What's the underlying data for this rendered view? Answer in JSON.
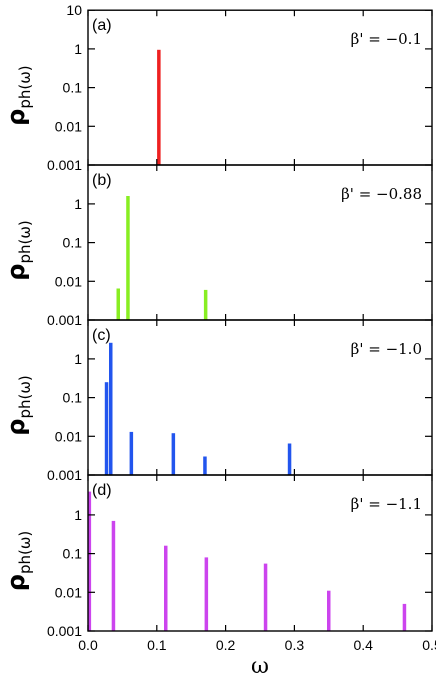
{
  "chart_data": [
    {
      "type": "bar",
      "panel_tag": "(a)",
      "annotation": "β' = −0.1",
      "ylabel": "ρ",
      "ylabel_sub": "ph(ω)",
      "yscale": "log",
      "ylim": [
        0.001,
        10
      ],
      "yticks": [
        "0.001",
        "0.01",
        "0.1",
        "1",
        "10"
      ],
      "xlim": [
        0,
        0.5
      ],
      "color": "#ee2020",
      "x": [
        0.103
      ],
      "values": [
        0.95
      ]
    },
    {
      "type": "bar",
      "panel_tag": "(b)",
      "annotation": "β' = −0.88",
      "ylabel": "ρ",
      "ylabel_sub": "ph(ω)",
      "yscale": "log",
      "ylim": [
        0.001,
        10
      ],
      "yticks": [
        "0.001",
        "0.01",
        "0.1",
        "1"
      ],
      "xlim": [
        0,
        0.5
      ],
      "color": "#88ee22",
      "x": [
        0.044,
        0.058,
        0.171
      ],
      "values": [
        0.0065,
        1.6,
        0.006
      ]
    },
    {
      "type": "bar",
      "panel_tag": "(c)",
      "annotation": "β' = −1.0",
      "ylabel": "ρ",
      "ylabel_sub": "ph(ω)",
      "yscale": "log",
      "ylim": [
        0.001,
        10
      ],
      "yticks": [
        "0.001",
        "0.01",
        "0.1",
        "1"
      ],
      "xlim": [
        0,
        0.5
      ],
      "color": "#2255ee",
      "x": [
        0.027,
        0.033,
        0.063,
        0.124,
        0.17,
        0.293
      ],
      "values": [
        0.25,
        2.6,
        0.013,
        0.012,
        0.003,
        0.0065
      ]
    },
    {
      "type": "bar",
      "panel_tag": "(d)",
      "annotation": "β' = −1.1",
      "ylabel": "ρ",
      "ylabel_sub": "ph(ω)",
      "yscale": "log",
      "ylim": [
        0.001,
        10
      ],
      "yticks": [
        "0.001",
        "0.01",
        "0.1",
        "1"
      ],
      "xlim": [
        0,
        0.5
      ],
      "xticks": [
        "0.0",
        "0.1",
        "0.2",
        "0.3",
        "0.4",
        "0.5"
      ],
      "xlabel": "ω",
      "color": "#cc44ee",
      "x": [
        0.002,
        0.037,
        0.113,
        0.172,
        0.258,
        0.35,
        0.46
      ],
      "values": [
        4.0,
        0.7,
        0.16,
        0.08,
        0.055,
        0.011,
        0.005
      ]
    }
  ]
}
